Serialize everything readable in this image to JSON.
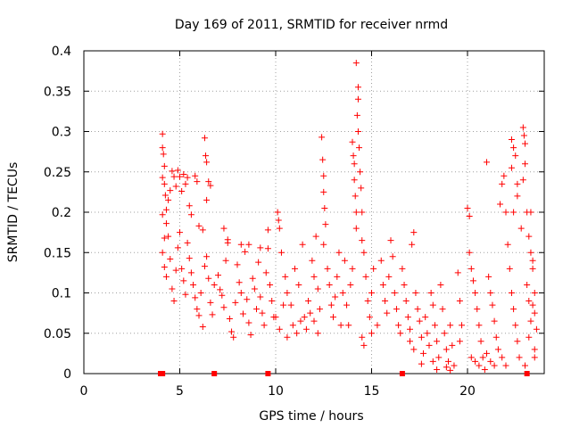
{
  "chart_data": {
    "type": "scatter",
    "title": "Day 169 of 2011, SRMTID for receiver nrmd",
    "xlabel": "GPS time / hours",
    "ylabel": "SRMTID / TECUs",
    "xlim": [
      0,
      24
    ],
    "ylim": [
      0,
      0.4
    ],
    "x_ticks": [
      0,
      5,
      10,
      15,
      20
    ],
    "y_ticks": [
      0,
      0.05,
      0.1,
      0.15,
      0.2,
      0.25,
      0.3,
      0.35,
      0.4
    ],
    "y_tick_labels": [
      "0",
      "0.05",
      "0.1",
      "0.15",
      "0.2",
      "0.25",
      "0.3",
      "0.35",
      "0.4"
    ],
    "grid": true,
    "marker_color": "#ff0000",
    "marker": "plus",
    "series": [
      {
        "name": "SRMTID",
        "points": [
          [
            4.1,
            0.297
          ],
          [
            4.1,
            0.28
          ],
          [
            4.15,
            0.272
          ],
          [
            4.2,
            0.257
          ],
          [
            4.1,
            0.243
          ],
          [
            4.2,
            0.235
          ],
          [
            4.25,
            0.221
          ],
          [
            4.3,
            0.203
          ],
          [
            4.1,
            0.197
          ],
          [
            4.3,
            0.186
          ],
          [
            4.4,
            0.215
          ],
          [
            4.5,
            0.227
          ],
          [
            4.6,
            0.251
          ],
          [
            4.7,
            0.244
          ],
          [
            4.8,
            0.232
          ],
          [
            4.9,
            0.252
          ],
          [
            5.0,
            0.244
          ],
          [
            5.1,
            0.226
          ],
          [
            5.2,
            0.247
          ],
          [
            5.3,
            0.235
          ],
          [
            5.4,
            0.243
          ],
          [
            5.5,
            0.208
          ],
          [
            5.6,
            0.197
          ],
          [
            5.8,
            0.245
          ],
          [
            5.9,
            0.238
          ],
          [
            6.0,
            0.183
          ],
          [
            6.2,
            0.178
          ],
          [
            6.3,
            0.292
          ],
          [
            6.35,
            0.27
          ],
          [
            6.4,
            0.262
          ],
          [
            6.5,
            0.238
          ],
          [
            6.6,
            0.233
          ],
          [
            6.4,
            0.215
          ],
          [
            4.1,
            0.15
          ],
          [
            4.2,
            0.132
          ],
          [
            4.3,
            0.12
          ],
          [
            4.2,
            0.168
          ],
          [
            4.4,
            0.17
          ],
          [
            4.5,
            0.142
          ],
          [
            4.6,
            0.105
          ],
          [
            4.7,
            0.09
          ],
          [
            4.8,
            0.128
          ],
          [
            4.9,
            0.156
          ],
          [
            5.0,
            0.175
          ],
          [
            5.1,
            0.13
          ],
          [
            5.2,
            0.115
          ],
          [
            5.3,
            0.098
          ],
          [
            5.4,
            0.162
          ],
          [
            5.5,
            0.143
          ],
          [
            5.6,
            0.125
          ],
          [
            5.7,
            0.11
          ],
          [
            5.8,
            0.094
          ],
          [
            5.9,
            0.08
          ],
          [
            6.0,
            0.072
          ],
          [
            6.1,
            0.1
          ],
          [
            6.2,
            0.058
          ],
          [
            6.3,
            0.133
          ],
          [
            6.4,
            0.145
          ],
          [
            6.5,
            0.118
          ],
          [
            6.6,
            0.088
          ],
          [
            6.7,
            0.073
          ],
          [
            6.8,
            0.11
          ],
          [
            7.0,
            0.122
          ],
          [
            7.1,
            0.104
          ],
          [
            7.2,
            0.097
          ],
          [
            7.3,
            0.082
          ],
          [
            7.4,
            0.14
          ],
          [
            7.5,
            0.162
          ],
          [
            7.6,
            0.068
          ],
          [
            7.7,
            0.052
          ],
          [
            7.8,
            0.045
          ],
          [
            7.9,
            0.088
          ],
          [
            8.0,
            0.135
          ],
          [
            8.1,
            0.113
          ],
          [
            8.2,
            0.1
          ],
          [
            8.3,
            0.074
          ],
          [
            8.4,
            0.151
          ],
          [
            8.5,
            0.092
          ],
          [
            8.6,
            0.063
          ],
          [
            8.7,
            0.048
          ],
          [
            8.8,
            0.118
          ],
          [
            8.9,
            0.105
          ],
          [
            9.0,
            0.08
          ],
          [
            9.1,
            0.138
          ],
          [
            9.2,
            0.095
          ],
          [
            9.3,
            0.075
          ],
          [
            9.4,
            0.06
          ],
          [
            9.5,
            0.125
          ],
          [
            9.6,
            0.155
          ],
          [
            9.7,
            0.11
          ],
          [
            9.8,
            0.09
          ],
          [
            9.9,
            0.07
          ],
          [
            7.3,
            0.18
          ],
          [
            7.5,
            0.166
          ],
          [
            8.2,
            0.16
          ],
          [
            8.6,
            0.16
          ],
          [
            9.2,
            0.156
          ],
          [
            9.6,
            0.178
          ],
          [
            10.1,
            0.2
          ],
          [
            10.15,
            0.19
          ],
          [
            10.2,
            0.18
          ],
          [
            10.3,
            0.15
          ],
          [
            10.5,
            0.12
          ],
          [
            10.6,
            0.1
          ],
          [
            10.8,
            0.085
          ],
          [
            11.0,
            0.13
          ],
          [
            11.2,
            0.11
          ],
          [
            11.4,
            0.16
          ],
          [
            11.5,
            0.07
          ],
          [
            11.7,
            0.09
          ],
          [
            11.9,
            0.14
          ],
          [
            12.0,
            0.12
          ],
          [
            12.1,
            0.17
          ],
          [
            12.2,
            0.105
          ],
          [
            12.3,
            0.08
          ],
          [
            10.0,
            0.07
          ],
          [
            10.2,
            0.055
          ],
          [
            10.4,
            0.085
          ],
          [
            10.6,
            0.045
          ],
          [
            10.9,
            0.06
          ],
          [
            11.1,
            0.05
          ],
          [
            11.3,
            0.065
          ],
          [
            11.6,
            0.055
          ],
          [
            11.8,
            0.075
          ],
          [
            12.0,
            0.065
          ],
          [
            12.2,
            0.05
          ],
          [
            12.4,
            0.293
          ],
          [
            12.45,
            0.265
          ],
          [
            12.5,
            0.245
          ],
          [
            12.5,
            0.225
          ],
          [
            12.55,
            0.205
          ],
          [
            12.6,
            0.185
          ],
          [
            12.5,
            0.16
          ],
          [
            12.7,
            0.13
          ],
          [
            12.8,
            0.11
          ],
          [
            12.9,
            0.085
          ],
          [
            13.0,
            0.07
          ],
          [
            13.1,
            0.095
          ],
          [
            13.2,
            0.12
          ],
          [
            13.3,
            0.15
          ],
          [
            13.4,
            0.06
          ],
          [
            13.5,
            0.1
          ],
          [
            13.6,
            0.14
          ],
          [
            13.7,
            0.085
          ],
          [
            13.8,
            0.06
          ],
          [
            13.9,
            0.11
          ],
          [
            14.0,
            0.13
          ],
          [
            14.0,
            0.287
          ],
          [
            14.05,
            0.27
          ],
          [
            14.1,
            0.26
          ],
          [
            14.1,
            0.24
          ],
          [
            14.15,
            0.22
          ],
          [
            14.2,
            0.2
          ],
          [
            14.2,
            0.385
          ],
          [
            14.3,
            0.355
          ],
          [
            14.3,
            0.34
          ],
          [
            14.25,
            0.32
          ],
          [
            14.3,
            0.3
          ],
          [
            14.35,
            0.28
          ],
          [
            14.4,
            0.25
          ],
          [
            14.45,
            0.23
          ],
          [
            14.5,
            0.2
          ],
          [
            14.2,
            0.18
          ],
          [
            14.5,
            0.165
          ],
          [
            14.6,
            0.15
          ],
          [
            14.7,
            0.12
          ],
          [
            14.8,
            0.09
          ],
          [
            14.9,
            0.07
          ],
          [
            15.0,
            0.1
          ],
          [
            15.1,
            0.13
          ],
          [
            14.5,
            0.045
          ],
          [
            14.6,
            0.035
          ],
          [
            15.0,
            0.05
          ],
          [
            15.3,
            0.06
          ],
          [
            15.5,
            0.14
          ],
          [
            15.6,
            0.11
          ],
          [
            15.7,
            0.09
          ],
          [
            15.8,
            0.075
          ],
          [
            15.9,
            0.12
          ],
          [
            16.0,
            0.165
          ],
          [
            16.1,
            0.145
          ],
          [
            16.2,
            0.1
          ],
          [
            16.3,
            0.08
          ],
          [
            16.4,
            0.06
          ],
          [
            16.5,
            0.05
          ],
          [
            16.6,
            0.13
          ],
          [
            16.7,
            0.11
          ],
          [
            16.8,
            0.09
          ],
          [
            16.9,
            0.07
          ],
          [
            17.0,
            0.055
          ],
          [
            17.1,
            0.16
          ],
          [
            17.2,
            0.175
          ],
          [
            17.3,
            0.1
          ],
          [
            17.4,
            0.08
          ],
          [
            17.0,
            0.04
          ],
          [
            17.2,
            0.03
          ],
          [
            17.5,
            0.065
          ],
          [
            17.6,
            0.045
          ],
          [
            17.7,
            0.025
          ],
          [
            17.8,
            0.07
          ],
          [
            17.9,
            0.05
          ],
          [
            18.0,
            0.035
          ],
          [
            18.1,
            0.1
          ],
          [
            18.2,
            0.085
          ],
          [
            18.3,
            0.06
          ],
          [
            18.4,
            0.04
          ],
          [
            18.5,
            0.02
          ],
          [
            18.6,
            0.11
          ],
          [
            18.7,
            0.08
          ],
          [
            18.8,
            0.05
          ],
          [
            18.9,
            0.03
          ],
          [
            19.0,
            0.015
          ],
          [
            19.1,
            0.06
          ],
          [
            19.2,
            0.035
          ],
          [
            19.3,
            0.01
          ],
          [
            18.4,
            0.005
          ],
          [
            18.9,
            0.008
          ],
          [
            19.1,
            0.004
          ],
          [
            17.6,
            0.012
          ],
          [
            18.2,
            0.015
          ],
          [
            19.5,
            0.125
          ],
          [
            19.6,
            0.09
          ],
          [
            19.7,
            0.06
          ],
          [
            19.6,
            0.04
          ],
          [
            20.0,
            0.205
          ],
          [
            20.1,
            0.195
          ],
          [
            20.1,
            0.15
          ],
          [
            20.2,
            0.13
          ],
          [
            20.3,
            0.115
          ],
          [
            20.4,
            0.1
          ],
          [
            20.5,
            0.08
          ],
          [
            20.6,
            0.06
          ],
          [
            20.7,
            0.04
          ],
          [
            20.8,
            0.02
          ],
          [
            20.9,
            0.005
          ],
          [
            21.0,
            0.262
          ],
          [
            21.1,
            0.12
          ],
          [
            21.2,
            0.1
          ],
          [
            21.3,
            0.085
          ],
          [
            21.4,
            0.065
          ],
          [
            21.5,
            0.045
          ],
          [
            21.6,
            0.03
          ],
          [
            21.7,
            0.21
          ],
          [
            21.8,
            0.235
          ],
          [
            21.9,
            0.245
          ],
          [
            22.0,
            0.2
          ],
          [
            22.1,
            0.16
          ],
          [
            22.2,
            0.13
          ],
          [
            22.3,
            0.1
          ],
          [
            22.4,
            0.08
          ],
          [
            22.5,
            0.06
          ],
          [
            22.6,
            0.04
          ],
          [
            22.7,
            0.02
          ],
          [
            20.2,
            0.02
          ],
          [
            20.4,
            0.015
          ],
          [
            20.6,
            0.01
          ],
          [
            21.0,
            0.025
          ],
          [
            21.2,
            0.015
          ],
          [
            21.4,
            0.01
          ],
          [
            21.8,
            0.02
          ],
          [
            22.0,
            0.01
          ],
          [
            22.3,
            0.29
          ],
          [
            22.4,
            0.28
          ],
          [
            22.5,
            0.27
          ],
          [
            22.3,
            0.255
          ],
          [
            22.6,
            0.235
          ],
          [
            22.6,
            0.22
          ],
          [
            22.4,
            0.2
          ],
          [
            22.8,
            0.18
          ],
          [
            22.9,
            0.305
          ],
          [
            22.95,
            0.295
          ],
          [
            23.0,
            0.285
          ],
          [
            23.0,
            0.26
          ],
          [
            22.9,
            0.24
          ],
          [
            23.1,
            0.2
          ],
          [
            23.2,
            0.17
          ],
          [
            23.3,
            0.15
          ],
          [
            23.4,
            0.13
          ],
          [
            23.5,
            0.1
          ],
          [
            23.4,
            0.085
          ],
          [
            23.3,
            0.065
          ],
          [
            23.2,
            0.045
          ],
          [
            23.5,
            0.02
          ],
          [
            23.6,
            0.055
          ],
          [
            23.3,
            0.2
          ],
          [
            23.4,
            0.14
          ],
          [
            23.5,
            0.075
          ],
          [
            23.1,
            0.11
          ],
          [
            23.2,
            0.09
          ],
          [
            23.0,
            0.01
          ],
          [
            23.5,
            0.03
          ]
        ]
      }
    ],
    "baseline_markers_x": [
      4.0,
      4.1,
      6.8,
      9.6,
      16.6,
      23.1
    ]
  }
}
